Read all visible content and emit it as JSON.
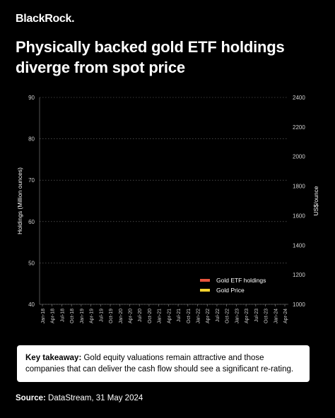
{
  "brand": "BlackRock.",
  "title_line1": "Physically backed gold ETF holdings",
  "title_line2": "diverge from spot price",
  "chart_data": {
    "type": "line",
    "title": "Physically backed gold ETF holdings diverge from spot price",
    "x_labels": [
      "Jan-18",
      "Apr-18",
      "Jul-18",
      "Oct-18",
      "Jan-19",
      "Apr-19",
      "Jul-19",
      "Oct-19",
      "Jan-20",
      "Apr-20",
      "Jul-20",
      "Oct-20",
      "Jan-21",
      "Apr-21",
      "Jul-21",
      "Oct-21",
      "Jan-22",
      "Apr-22",
      "Jul-22",
      "Oct-22",
      "Jan-23",
      "Apr-23",
      "Jul-23",
      "Oct-23",
      "Jan-24",
      "Apr-24"
    ],
    "ylabel_left": "Holdings (Million ounces)",
    "ylabel_right": "US$/ounce",
    "y_left_ticks": [
      90,
      80,
      70,
      60,
      50,
      40
    ],
    "y_right_ticks": [
      2400,
      2200,
      2000,
      1800,
      1600,
      1400,
      1200,
      1000
    ],
    "ylim_left": [
      40,
      90
    ],
    "ylim_right": [
      1000,
      2400
    ],
    "grid": "horizontal dotted",
    "legend_position": "bottom-right",
    "series": [
      {
        "name": "Gold ETF holdings",
        "color": "#e8553e",
        "axis": "left",
        "values": []
      },
      {
        "name": "Gold Price",
        "color": "#f2d12e",
        "axis": "right",
        "values": []
      }
    ]
  },
  "takeaway": {
    "label": "Key takeaway:",
    "text": " Gold equity valuations remain attractive and those companies that can deliver the cash flow should see a significant re-rating."
  },
  "source": {
    "label": "Source:",
    "text": " DataStream, 31 May 2024"
  }
}
